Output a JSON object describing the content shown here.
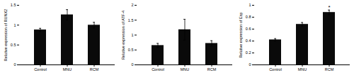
{
  "chart_data": [
    {
      "type": "bar",
      "ylabel": "Relative expression of RUNX2",
      "categories": [
        "Control",
        "MNU",
        "RCM"
      ],
      "values": [
        0.88,
        1.26,
        1.0
      ],
      "errors": [
        0.04,
        0.13,
        0.07
      ],
      "ylim": [
        0,
        1.5
      ],
      "yticks": [
        0,
        0.5,
        1,
        1.5
      ],
      "color": "#0a0a0a"
    },
    {
      "type": "bar",
      "ylabel": "Relative expression of ATF-4",
      "categories": [
        "Control",
        "MNU",
        "RCM"
      ],
      "values": [
        0.65,
        1.18,
        0.72
      ],
      "errors": [
        0.07,
        0.35,
        0.09
      ],
      "ylim": [
        0,
        2.0
      ],
      "yticks": [
        0,
        0.5,
        1,
        1.5,
        2
      ],
      "color": "#0a0a0a"
    },
    {
      "type": "bar",
      "ylabel": "Relative expression of Esp",
      "categories": [
        "Control",
        "MNU",
        "RCM"
      ],
      "values": [
        0.42,
        0.68,
        0.88
      ],
      "errors": [
        0.02,
        0.03,
        0.04
      ],
      "ylim": [
        0,
        1.0
      ],
      "yticks": [
        0,
        0.2,
        0.4,
        0.6,
        0.8,
        1
      ],
      "color": "#0a0a0a",
      "annotations": [
        {
          "x": "RCM",
          "text": "*"
        }
      ]
    }
  ]
}
